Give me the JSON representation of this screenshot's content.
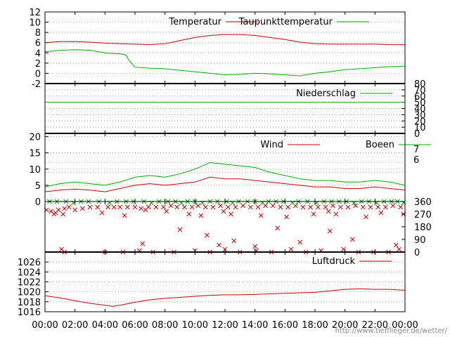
{
  "chart_data": [
    {
      "type": "line",
      "panel": "temperature",
      "x_unit": "hours",
      "xlim": [
        0,
        24
      ],
      "ylim": [
        -2,
        12
      ],
      "y_ticks": [
        -2,
        0,
        2,
        4,
        6,
        8,
        10,
        12
      ],
      "y_tick_labels": [
        "-2",
        "0",
        "2",
        "4",
        "6",
        "8",
        "10",
        "12"
      ],
      "grid": "dotted",
      "legend": "top-right",
      "series": [
        {
          "name": "Temperatur",
          "color": "#cc0000",
          "x": [
            0,
            1,
            2,
            3,
            4,
            5,
            6,
            7,
            8,
            9,
            10,
            11,
            12,
            13,
            14,
            15,
            16,
            17,
            18,
            19,
            20,
            21,
            22,
            23,
            24
          ],
          "y": [
            6.0,
            6.2,
            6.2,
            6.1,
            5.9,
            5.8,
            5.7,
            5.6,
            5.8,
            6.4,
            7.0,
            7.4,
            7.6,
            7.6,
            7.4,
            7.0,
            6.6,
            6.1,
            5.8,
            5.7,
            5.7,
            5.7,
            5.7,
            5.6,
            5.6
          ]
        },
        {
          "name": "Taupunkttemperatur",
          "color": "#00aa00",
          "x": [
            0,
            1,
            2,
            3,
            4,
            5,
            5.4,
            5.6,
            6,
            7,
            8,
            9,
            10,
            11,
            12,
            13,
            14,
            15,
            16,
            17,
            18,
            19,
            20,
            21,
            22,
            23,
            24
          ],
          "y": [
            4.2,
            4.5,
            4.6,
            4.5,
            4.0,
            3.8,
            3.6,
            2.5,
            1.2,
            1.0,
            0.9,
            0.6,
            0.3,
            0.0,
            -0.3,
            -0.2,
            0.0,
            -0.1,
            -0.3,
            -0.5,
            0.0,
            0.3,
            0.7,
            0.9,
            1.1,
            1.3,
            1.4
          ]
        }
      ]
    },
    {
      "type": "line",
      "panel": "precipitation",
      "x_unit": "hours",
      "xlim": [
        0,
        24
      ],
      "ylim": [
        0,
        80
      ],
      "y_ticks": [
        0,
        10,
        20,
        30,
        40,
        50,
        60,
        70,
        80
      ],
      "y_tick_labels": [
        "0",
        "10",
        "20",
        "30",
        "40",
        "50",
        "60",
        "70",
        "80"
      ],
      "y_axis": "right",
      "legend": "top-right",
      "series": [
        {
          "name": "Niederschlag",
          "color": "#00aa00",
          "x": [
            0,
            24
          ],
          "y": [
            50,
            50
          ]
        }
      ]
    },
    {
      "type": "line",
      "panel": "wind",
      "x_unit": "hours",
      "xlim": [
        0,
        24
      ],
      "ylim": [
        0,
        21
      ],
      "y_ticks": [
        0,
        5,
        10,
        15,
        20
      ],
      "y_tick_labels": [
        "0",
        "5",
        "10",
        "15",
        "20"
      ],
      "right_labels": [
        "7",
        "6"
      ],
      "legend": "top-right",
      "series": [
        {
          "name": "Wind",
          "color": "#cc0000",
          "x": [
            0,
            1,
            2,
            3,
            4,
            5,
            6,
            7,
            8,
            9,
            10,
            11,
            12,
            13,
            14,
            15,
            16,
            17,
            18,
            19,
            20,
            21,
            22,
            23,
            24
          ],
          "y": [
            3,
            3.5,
            3.8,
            3.5,
            3,
            4,
            5,
            5.5,
            5,
            5.5,
            6,
            7.5,
            7,
            7,
            6.5,
            6,
            5.5,
            5,
            4.5,
            4.5,
            4,
            4,
            4.5,
            4,
            3.5
          ]
        },
        {
          "name": "Boeen",
          "color": "#00aa00",
          "x": [
            0,
            1,
            2,
            3,
            4,
            5,
            6,
            7,
            8,
            9,
            10,
            11,
            12,
            13,
            14,
            15,
            16,
            17,
            18,
            19,
            20,
            21,
            22,
            23,
            24
          ],
          "y": [
            4.5,
            5.5,
            6,
            5.5,
            5,
            6,
            7.5,
            8,
            7.5,
            8.5,
            10,
            12,
            11.5,
            11,
            10.5,
            9,
            8,
            7,
            6.5,
            6.5,
            6,
            6,
            6.5,
            6,
            5
          ]
        }
      ]
    },
    {
      "type": "scatter",
      "panel": "wind-direction",
      "x_unit": "hours",
      "xlim": [
        0,
        24
      ],
      "ylim": [
        0,
        360
      ],
      "y_ticks": [
        0,
        90,
        180,
        270,
        360
      ],
      "y_tick_labels": [
        "0",
        "90",
        "180",
        "270",
        "360"
      ],
      "y_axis": "right",
      "series": [
        {
          "name": "",
          "color": "#cc0000",
          "x": [
            0.1,
            0.4,
            0.6,
            0.9,
            1.3,
            1.6,
            2.0,
            2.5,
            3.0,
            3.5,
            4.2,
            4.6,
            5.0,
            5.5,
            6.0,
            6.4,
            6.9,
            7.4,
            7.9,
            8.4,
            8.8,
            9.3,
            9.8,
            10.2,
            10.7,
            11.2,
            11.7,
            12.2,
            12.7,
            13.2,
            13.7,
            14.2,
            14.7,
            15.2,
            15.7,
            16.2,
            16.7,
            17.2,
            17.7,
            18.2,
            18.7,
            19.2,
            19.7,
            20.2,
            20.7,
            21.2,
            21.7,
            22.2,
            22.7,
            23.2,
            23.7,
            0.7,
            1.2,
            3.8,
            5.3,
            6.7,
            8.1,
            9.6,
            10.4,
            11.9,
            12.4,
            14.4,
            16.1,
            17.9,
            18.9,
            19.4,
            21.4,
            22.4,
            23.9,
            1.1,
            1.3,
            4.0,
            5.2,
            6.3,
            7.2,
            8.6,
            10.0,
            11.0,
            12.0,
            13.0,
            14.1,
            15.1,
            16.4,
            17.4,
            18.4,
            19.9,
            20.9,
            21.9,
            22.9,
            23.6,
            6.5,
            9.0,
            10.8,
            11.6,
            12.6,
            14.0,
            15.5,
            17.0,
            19.0,
            20.5,
            23.4
          ],
          "y": [
            300,
            290,
            270,
            300,
            310,
            320,
            300,
            310,
            320,
            320,
            320,
            320,
            320,
            320,
            320,
            310,
            320,
            320,
            320,
            330,
            320,
            320,
            320,
            330,
            320,
            320,
            330,
            320,
            320,
            330,
            320,
            320,
            330,
            330,
            320,
            320,
            330,
            320,
            320,
            320,
            320,
            330,
            320,
            320,
            330,
            320,
            320,
            320,
            320,
            330,
            320,
            280,
            270,
            280,
            260,
            300,
            290,
            270,
            260,
            290,
            270,
            260,
            250,
            270,
            290,
            270,
            250,
            280,
            270,
            20,
            0,
            0,
            0,
            10,
            0,
            0,
            10,
            0,
            20,
            0,
            10,
            0,
            20,
            0,
            10,
            20,
            0,
            0,
            0,
            20,
            60,
            160,
            120,
            50,
            80,
            40,
            170,
            70,
            150,
            90,
            50
          ]
        },
        {
          "name": "",
          "color": "#00aa00",
          "x": [
            0.3,
            0.8,
            1.4,
            1.9,
            2.4,
            2.9,
            3.6,
            4.3,
            4.8,
            5.4,
            5.9,
            6.6,
            7.1,
            7.6,
            8.2,
            8.7,
            9.1,
            9.5,
            10.0,
            10.5,
            11.0,
            11.5,
            12.1,
            12.5,
            12.9,
            13.5,
            14.0,
            14.5,
            14.9,
            15.4,
            15.9,
            16.5,
            16.9,
            17.5,
            18.1,
            18.6,
            19.1,
            19.6,
            20.1,
            20.6,
            21.1,
            21.6,
            22.1,
            22.6,
            23.1,
            23.5,
            23.9
          ],
          "y": [
            360,
            360,
            360,
            350,
            360,
            360,
            360,
            350,
            360,
            360,
            360,
            360,
            350,
            360,
            360,
            360,
            350,
            360,
            360,
            350,
            360,
            360,
            360,
            350,
            360,
            360,
            360,
            350,
            360,
            360,
            360,
            350,
            360,
            360,
            350,
            360,
            360,
            360,
            360,
            350,
            360,
            360,
            350,
            360,
            360,
            360,
            350
          ]
        }
      ]
    },
    {
      "type": "line",
      "panel": "pressure",
      "x_unit": "hours",
      "xlim": [
        0,
        24
      ],
      "ylim": [
        1016,
        1028
      ],
      "y_ticks": [
        1016,
        1018,
        1020,
        1022,
        1024,
        1026
      ],
      "y_tick_labels": [
        "1016",
        "1018",
        "1020",
        "1022",
        "1024",
        "1026"
      ],
      "legend": "top-right",
      "series": [
        {
          "name": "Luftdruck",
          "color": "#cc0000",
          "x": [
            0,
            1,
            2,
            3,
            4,
            4.5,
            5,
            6,
            7,
            8,
            9,
            10,
            11,
            12,
            13,
            14,
            15,
            16,
            17,
            18,
            19,
            20,
            21,
            22,
            23,
            24
          ],
          "y": [
            1019.2,
            1018.8,
            1018.2,
            1017.7,
            1017.3,
            1017.1,
            1017.3,
            1017.9,
            1018.4,
            1018.7,
            1018.9,
            1019.1,
            1019.3,
            1019.4,
            1019.4,
            1019.5,
            1019.6,
            1019.7,
            1019.8,
            1019.9,
            1020.2,
            1020.5,
            1020.6,
            1020.5,
            1020.5,
            1020.3
          ]
        }
      ]
    }
  ],
  "x_axis": {
    "tick_labels": [
      "00:00",
      "02:00",
      "04:00",
      "06:00",
      "08:00",
      "10:00",
      "12:00",
      "14:00",
      "16:00",
      "18:00",
      "20:00",
      "22:00",
      "00:00"
    ]
  },
  "footer": {
    "url": "http://www.tiefflieger.de/wetter/"
  },
  "colors": {
    "red": "#cc0000",
    "green": "#00aa00",
    "grid": "#999999",
    "axis": "#000000"
  }
}
